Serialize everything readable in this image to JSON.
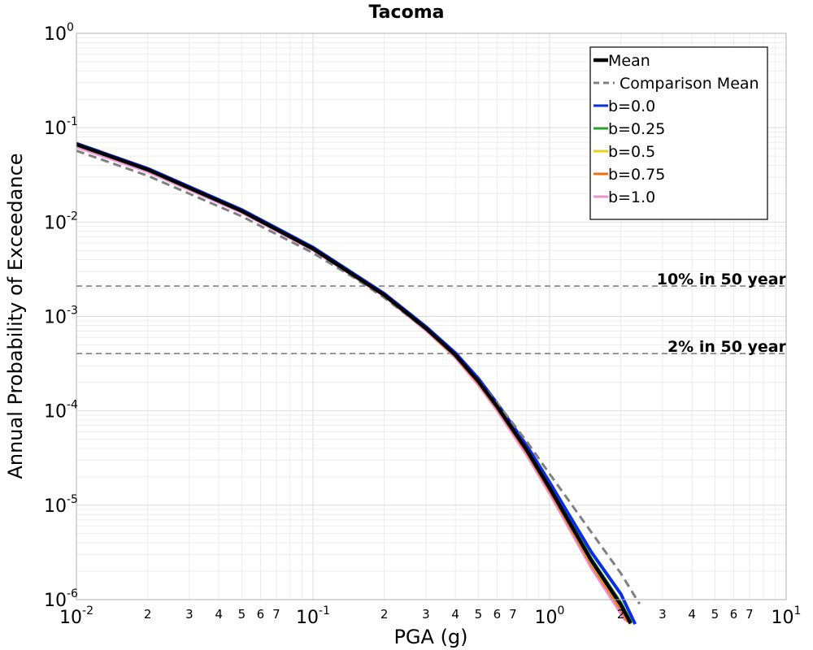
{
  "chart_data": {
    "type": "line",
    "title": "Tacoma",
    "xlabel": "PGA (g)",
    "ylabel": "Annual Probability of Exceedance",
    "xscale": "log",
    "yscale": "log",
    "xlim": [
      0.01,
      10
    ],
    "ylim": [
      1e-06,
      1
    ],
    "grid": true,
    "legend_position": "top-right",
    "x_major_ticks": [
      {
        "value": 0.01,
        "base": "10",
        "exp": "-2"
      },
      {
        "value": 0.1,
        "base": "10",
        "exp": "-1"
      },
      {
        "value": 1,
        "base": "10",
        "exp": "0"
      },
      {
        "value": 10,
        "base": "10",
        "exp": "1"
      }
    ],
    "x_minor_tick_labels": [
      "2",
      "3",
      "4",
      "5",
      "6",
      "7"
    ],
    "y_major_ticks": [
      {
        "value": 1,
        "base": "10",
        "exp": "0"
      },
      {
        "value": 0.1,
        "base": "10",
        "exp": "-1"
      },
      {
        "value": 0.01,
        "base": "10",
        "exp": "-2"
      },
      {
        "value": 0.001,
        "base": "10",
        "exp": "-3"
      },
      {
        "value": 0.0001,
        "base": "10",
        "exp": "-4"
      },
      {
        "value": 1e-05,
        "base": "10",
        "exp": "-5"
      },
      {
        "value": 1e-06,
        "base": "10",
        "exp": "-6"
      }
    ],
    "reference_lines": [
      {
        "label": "10% in 50 year",
        "y": 0.0021,
        "color": "#808080"
      },
      {
        "label": "2% in 50 year",
        "y": 0.000404,
        "color": "#808080"
      }
    ],
    "series": [
      {
        "name": "b=0.0",
        "color": "#0a2fe0",
        "style": "solid",
        "x": [
          0.01,
          0.02,
          0.05,
          0.1,
          0.2,
          0.3,
          0.4,
          0.5,
          0.6,
          0.8,
          1.0,
          1.5,
          2.0,
          2.3
        ],
        "y": [
          0.068,
          0.037,
          0.0135,
          0.0054,
          0.00175,
          0.00078,
          0.00041,
          0.00022,
          0.00012,
          4.3e-05,
          1.75e-05,
          3.2e-06,
          1.15e-06,
          5.5e-07
        ]
      },
      {
        "name": "b=0.25",
        "color": "#2ca02c",
        "style": "solid",
        "x": [
          0.01,
          0.02,
          0.05,
          0.1,
          0.2,
          0.3,
          0.4,
          0.5,
          0.6,
          0.8,
          1.0,
          1.5,
          2.0,
          2.2
        ],
        "y": [
          0.0675,
          0.0366,
          0.0133,
          0.0053,
          0.00171,
          0.00076,
          0.00039,
          0.000208,
          0.000113,
          3.95e-05,
          1.58e-05,
          2.7e-06,
          9.2e-07,
          5.8e-07
        ]
      },
      {
        "name": "b=0.5",
        "color": "#e8d020",
        "style": "solid",
        "x": [
          0.01,
          0.02,
          0.05,
          0.1,
          0.2,
          0.3,
          0.4,
          0.5,
          0.6,
          0.8,
          1.0,
          1.5,
          2.0,
          2.2
        ],
        "y": [
          0.067,
          0.0363,
          0.0132,
          0.00525,
          0.0017,
          0.00075,
          0.000385,
          0.000204,
          0.00011,
          3.82e-05,
          1.5e-05,
          2.5e-06,
          8.5e-07,
          5.5e-07
        ]
      },
      {
        "name": "b=0.75",
        "color": "#f07010",
        "style": "solid",
        "x": [
          0.01,
          0.02,
          0.05,
          0.1,
          0.2,
          0.3,
          0.4,
          0.5,
          0.6,
          0.8,
          1.0,
          1.5,
          2.0,
          2.15
        ],
        "y": [
          0.0665,
          0.036,
          0.0131,
          0.0052,
          0.00168,
          0.00074,
          0.00038,
          0.0002,
          0.000108,
          3.7e-05,
          1.45e-05,
          2.4e-06,
          8e-07,
          5.8e-07
        ]
      },
      {
        "name": "b=1.0",
        "color": "#f090d0",
        "style": "solid",
        "x": [
          0.01,
          0.02,
          0.05,
          0.1,
          0.2,
          0.3,
          0.4,
          0.5,
          0.6,
          0.8,
          1.0,
          1.5,
          2.0,
          2.1
        ],
        "y": [
          0.063,
          0.0345,
          0.0127,
          0.00508,
          0.00165,
          0.00072,
          0.00037,
          0.00019,
          0.000102,
          3.45e-05,
          1.35e-05,
          2.2e-06,
          7.2e-07,
          6e-07
        ]
      },
      {
        "name": "Mean",
        "color": "#000000",
        "style": "solid",
        "x": [
          0.01,
          0.02,
          0.05,
          0.1,
          0.2,
          0.3,
          0.4,
          0.5,
          0.6,
          0.8,
          1.0,
          1.5,
          2.0,
          2.2
        ],
        "y": [
          0.0665,
          0.036,
          0.0131,
          0.00522,
          0.00169,
          0.00075,
          0.00039,
          0.000205,
          0.000111,
          3.85e-05,
          1.52e-05,
          2.6e-06,
          8.8e-07,
          5.6e-07
        ]
      },
      {
        "name": "Comparison Mean",
        "color": "#808080",
        "style": "dashed",
        "x": [
          0.01,
          0.02,
          0.05,
          0.1,
          0.15,
          0.2,
          0.3,
          0.4,
          0.5,
          0.6,
          0.8,
          1.0,
          1.5,
          2.0,
          2.4
        ],
        "y": [
          0.057,
          0.031,
          0.0115,
          0.0047,
          0.00255,
          0.00158,
          0.00073,
          0.00039,
          0.00021,
          0.000121,
          4.75e-05,
          2.15e-05,
          5.2e-06,
          1.9e-06,
          9e-07
        ]
      }
    ],
    "legend_order": [
      "Mean",
      "Comparison Mean",
      "b=0.0",
      "b=0.25",
      "b=0.5",
      "b=0.75",
      "b=1.0"
    ]
  }
}
